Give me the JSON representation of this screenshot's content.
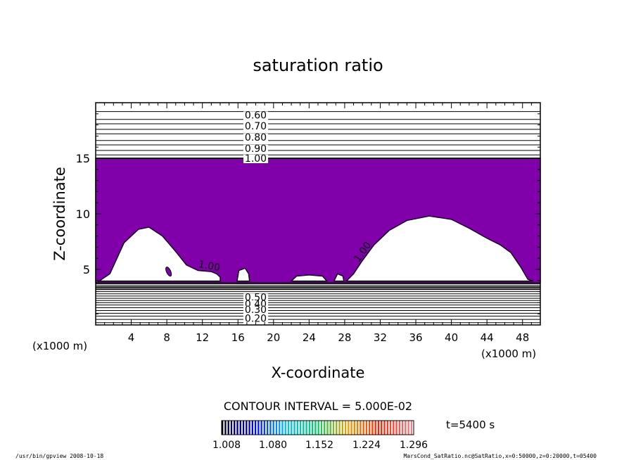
{
  "chart_data": {
    "type": "contour",
    "title": "saturation ratio",
    "xlabel": "X-coordinate",
    "ylabel": "Z-coordinate",
    "x_units": "(x1000 m)",
    "xlim": [
      0,
      50
    ],
    "ylim": [
      0,
      20
    ],
    "x_ticks": [
      4,
      8,
      12,
      16,
      20,
      24,
      28,
      32,
      36,
      40,
      44,
      48
    ],
    "y_ticks": [
      5,
      10,
      15
    ],
    "fill_color": "#8000aa",
    "supersaturated_region": {
      "z_top": 15,
      "z_bottom": 3.8,
      "left_hole": [
        [
          0.3,
          3.9
        ],
        [
          1.6,
          4.6
        ],
        [
          3.2,
          7.4
        ],
        [
          4.8,
          8.6
        ],
        [
          6.0,
          8.8
        ],
        [
          7.5,
          8.0
        ],
        [
          9.0,
          6.6
        ],
        [
          10.2,
          5.4
        ],
        [
          11.5,
          4.9
        ],
        [
          13.0,
          4.8
        ],
        [
          13.6,
          4.6
        ],
        [
          14.0,
          4.3
        ],
        [
          14.0,
          3.95
        ],
        [
          0.3,
          3.95
        ]
      ],
      "right_hole": [
        [
          28.2,
          3.95
        ],
        [
          29.0,
          4.6
        ],
        [
          30.0,
          5.8
        ],
        [
          31.3,
          7.2
        ],
        [
          33.0,
          8.5
        ],
        [
          35.0,
          9.4
        ],
        [
          37.5,
          9.8
        ],
        [
          40.0,
          9.5
        ],
        [
          42.0,
          8.7
        ],
        [
          44.0,
          7.8
        ],
        [
          45.5,
          7.2
        ],
        [
          46.7,
          6.5
        ],
        [
          47.8,
          5.2
        ],
        [
          48.6,
          4.1
        ],
        [
          49.2,
          3.95
        ]
      ],
      "small_holes": [
        [
          [
            15.9,
            3.95
          ],
          [
            16.1,
            4.9
          ],
          [
            16.8,
            5.1
          ],
          [
            17.2,
            4.6
          ],
          [
            17.3,
            3.95
          ]
        ],
        [
          [
            22.0,
            3.95
          ],
          [
            22.6,
            4.4
          ],
          [
            24.0,
            4.5
          ],
          [
            25.5,
            4.4
          ],
          [
            26.0,
            3.95
          ]
        ],
        [
          [
            26.8,
            3.95
          ],
          [
            27.2,
            4.6
          ],
          [
            27.8,
            4.4
          ],
          [
            27.9,
            3.95
          ]
        ]
      ]
    },
    "contour_labels_upper": [
      "0.60",
      "0.70",
      "0.80",
      "0.90",
      "1.00"
    ],
    "contour_labels_upper_z": [
      18.9,
      17.9,
      16.9,
      15.9,
      15.0
    ],
    "contour_labels_lower": [
      "0.50",
      "0.40",
      "0.30",
      "0.20"
    ],
    "contour_labels_lower_z": [
      2.5,
      1.9,
      1.4,
      0.6
    ],
    "contour_labels_inline": [
      {
        "text": "1.00",
        "x": 11.5,
        "z": 5.2,
        "rotate": 10
      },
      {
        "text": "1.00",
        "x": 29.6,
        "z": 5.6,
        "rotate": -55
      }
    ],
    "contour_interval_label": "CONTOUR INTERVAL = 5.000E-02",
    "colorbar": {
      "tick_labels": [
        "1.008",
        "1.080",
        "1.152",
        "1.224",
        "1.296"
      ],
      "colors": [
        "#000018",
        "#0000ff",
        "#00c0ff",
        "#00d060",
        "#f0a000",
        "#ff2000",
        "#f08080"
      ]
    },
    "time_label": "t=5400 s",
    "footer_left": "/usr/bin/gpview  2008-10-18",
    "footer_right": "MarsCond_SatRatio.nc@SatRatio,x=0:50000,z=0:20000,t=05400"
  }
}
